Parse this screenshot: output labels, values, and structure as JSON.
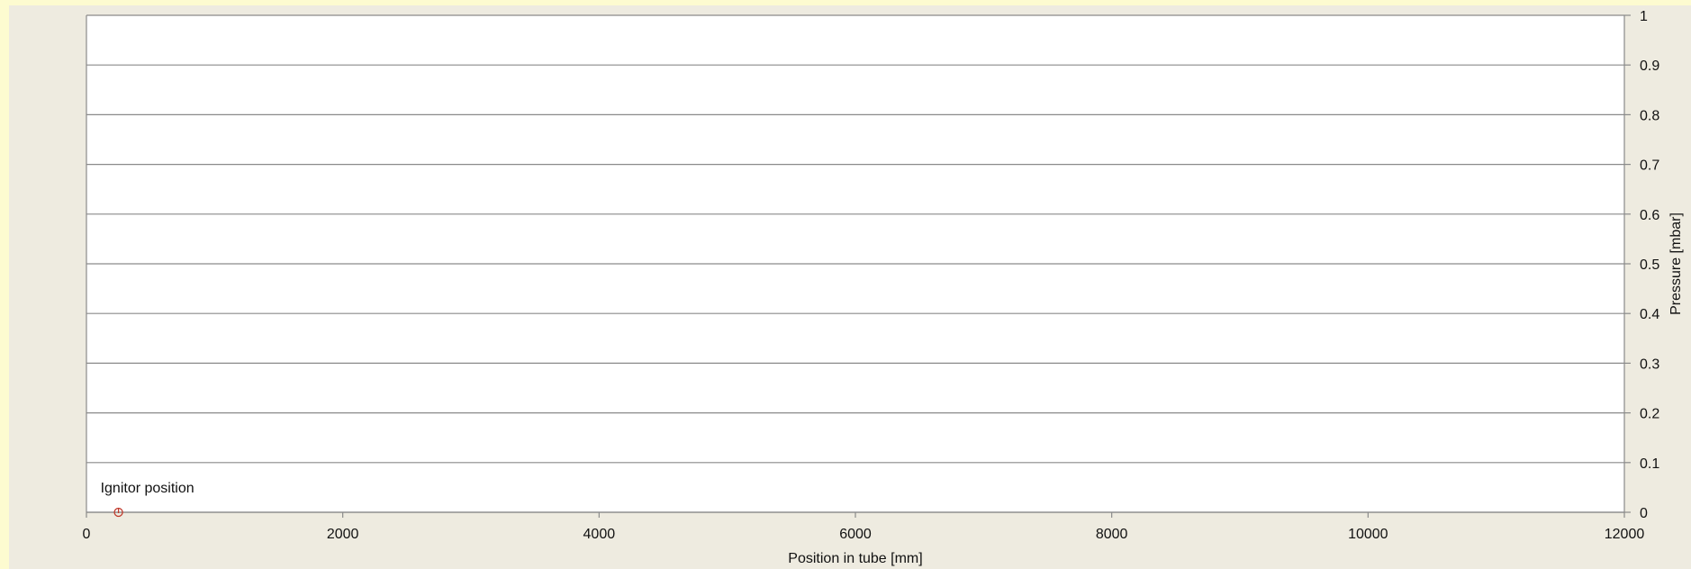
{
  "chart_data": {
    "type": "scatter",
    "title": "",
    "xlabel": "Position in tube [mm]",
    "ylabel": "Pressure [mbar]",
    "y_axis_side": "right",
    "xlim": [
      0,
      12000
    ],
    "ylim": [
      0,
      1
    ],
    "x_ticks": [
      "0",
      "2000",
      "4000",
      "6000",
      "8000",
      "10000",
      "12000"
    ],
    "y_ticks": [
      "0",
      "0.1",
      "0.2",
      "0.3",
      "0.4",
      "0.5",
      "0.6",
      "0.7",
      "0.8",
      "0.9",
      "1"
    ],
    "grid": "horizontal",
    "legend": "none",
    "points": [
      {
        "x": 250,
        "y": 0,
        "label": "Ignitor position",
        "color": "#c0392b"
      }
    ]
  },
  "colors": {
    "page_background": "#fdfbd0",
    "chart_background": "#eeebe0",
    "plot_background": "#ffffff",
    "gridline": "#8a8a8a",
    "marker": "#c0392b"
  }
}
